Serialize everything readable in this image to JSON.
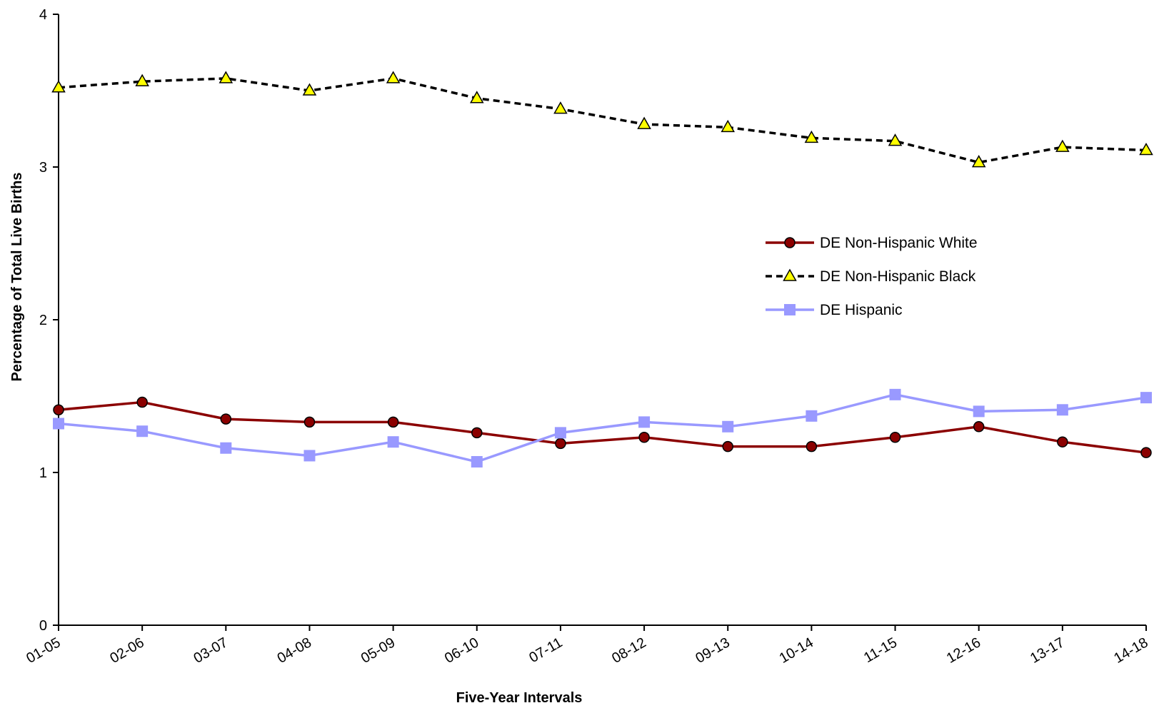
{
  "chart_data": {
    "type": "line",
    "categories": [
      "01-05",
      "02-06",
      "03-07",
      "04-08",
      "05-09",
      "06-10",
      "07-11",
      "08-12",
      "09-13",
      "10-14",
      "11-15",
      "12-16",
      "13-17",
      "14-18"
    ],
    "xlabel": "Five-Year Intervals",
    "ylabel": "Percentage of Total Live Births",
    "ylim": [
      0,
      4
    ],
    "yticks": [
      "0",
      "1",
      "2",
      "3",
      "4"
    ],
    "grid": false,
    "legend_position": "right",
    "series": [
      {
        "name": "DE Non-Hispanic White",
        "color": "#8b0000",
        "marker": "circle",
        "line_style": "solid",
        "values": [
          1.41,
          1.46,
          1.35,
          1.33,
          1.33,
          1.26,
          1.19,
          1.23,
          1.17,
          1.17,
          1.23,
          1.3,
          1.2,
          1.13
        ]
      },
      {
        "name": "DE Non-Hispanic Black",
        "color": "#000000",
        "marker_fill": "#ffff00",
        "marker": "triangle",
        "line_style": "dashed",
        "values": [
          3.52,
          3.56,
          3.58,
          3.5,
          3.58,
          3.45,
          3.38,
          3.28,
          3.26,
          3.19,
          3.17,
          3.03,
          3.13,
          3.11
        ]
      },
      {
        "name": "DE Hispanic",
        "color": "#9999ff",
        "marker": "square",
        "line_style": "solid",
        "values": [
          1.32,
          1.27,
          1.16,
          1.11,
          1.2,
          1.07,
          1.26,
          1.33,
          1.3,
          1.37,
          1.51,
          1.4,
          1.41,
          1.49
        ]
      }
    ]
  }
}
